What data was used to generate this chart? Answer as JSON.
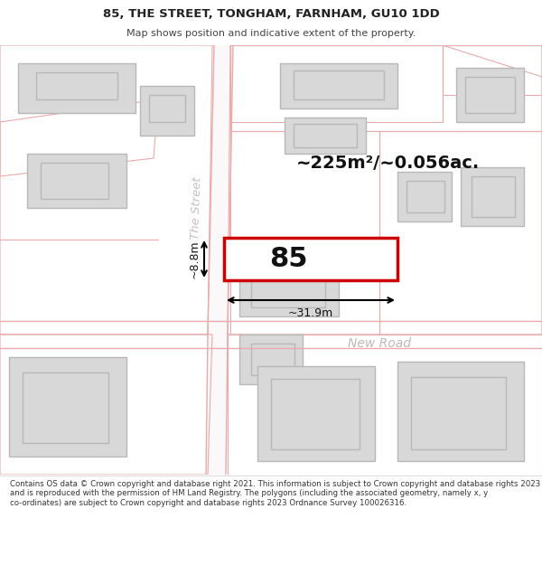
{
  "title": "85, THE STREET, TONGHAM, FARNHAM, GU10 1DD",
  "subtitle": "Map shows position and indicative extent of the property.",
  "footer": "Contains OS data © Crown copyright and database right 2021. This information is subject to Crown copyright and database rights 2023 and is reproduced with the permission of HM Land Registry. The polygons (including the associated geometry, namely x, y co-ordinates) are subject to Crown copyright and database rights 2023 Ordnance Survey 100026316.",
  "area_text": "~225m²/~0.056ac.",
  "label_85": "85",
  "dim_width": "~31.9m",
  "dim_height": "~8.8m",
  "street_name": "The Street",
  "road_name": "New Road",
  "bg_color": "#ffffff",
  "building_fill": "#d8d8d8",
  "building_edge": "#b8b8b8",
  "road_line_color": "#e8aaaa",
  "highlight_edge": "#cc0000",
  "highlight_fill": "#ffffff",
  "street_label_color": "#c8c0c0",
  "road_label_color": "#c0b8b8",
  "dim_color": "#111111",
  "area_text_color": "#111111",
  "title_color": "#222222",
  "subtitle_color": "#444444",
  "footer_color": "#333333"
}
